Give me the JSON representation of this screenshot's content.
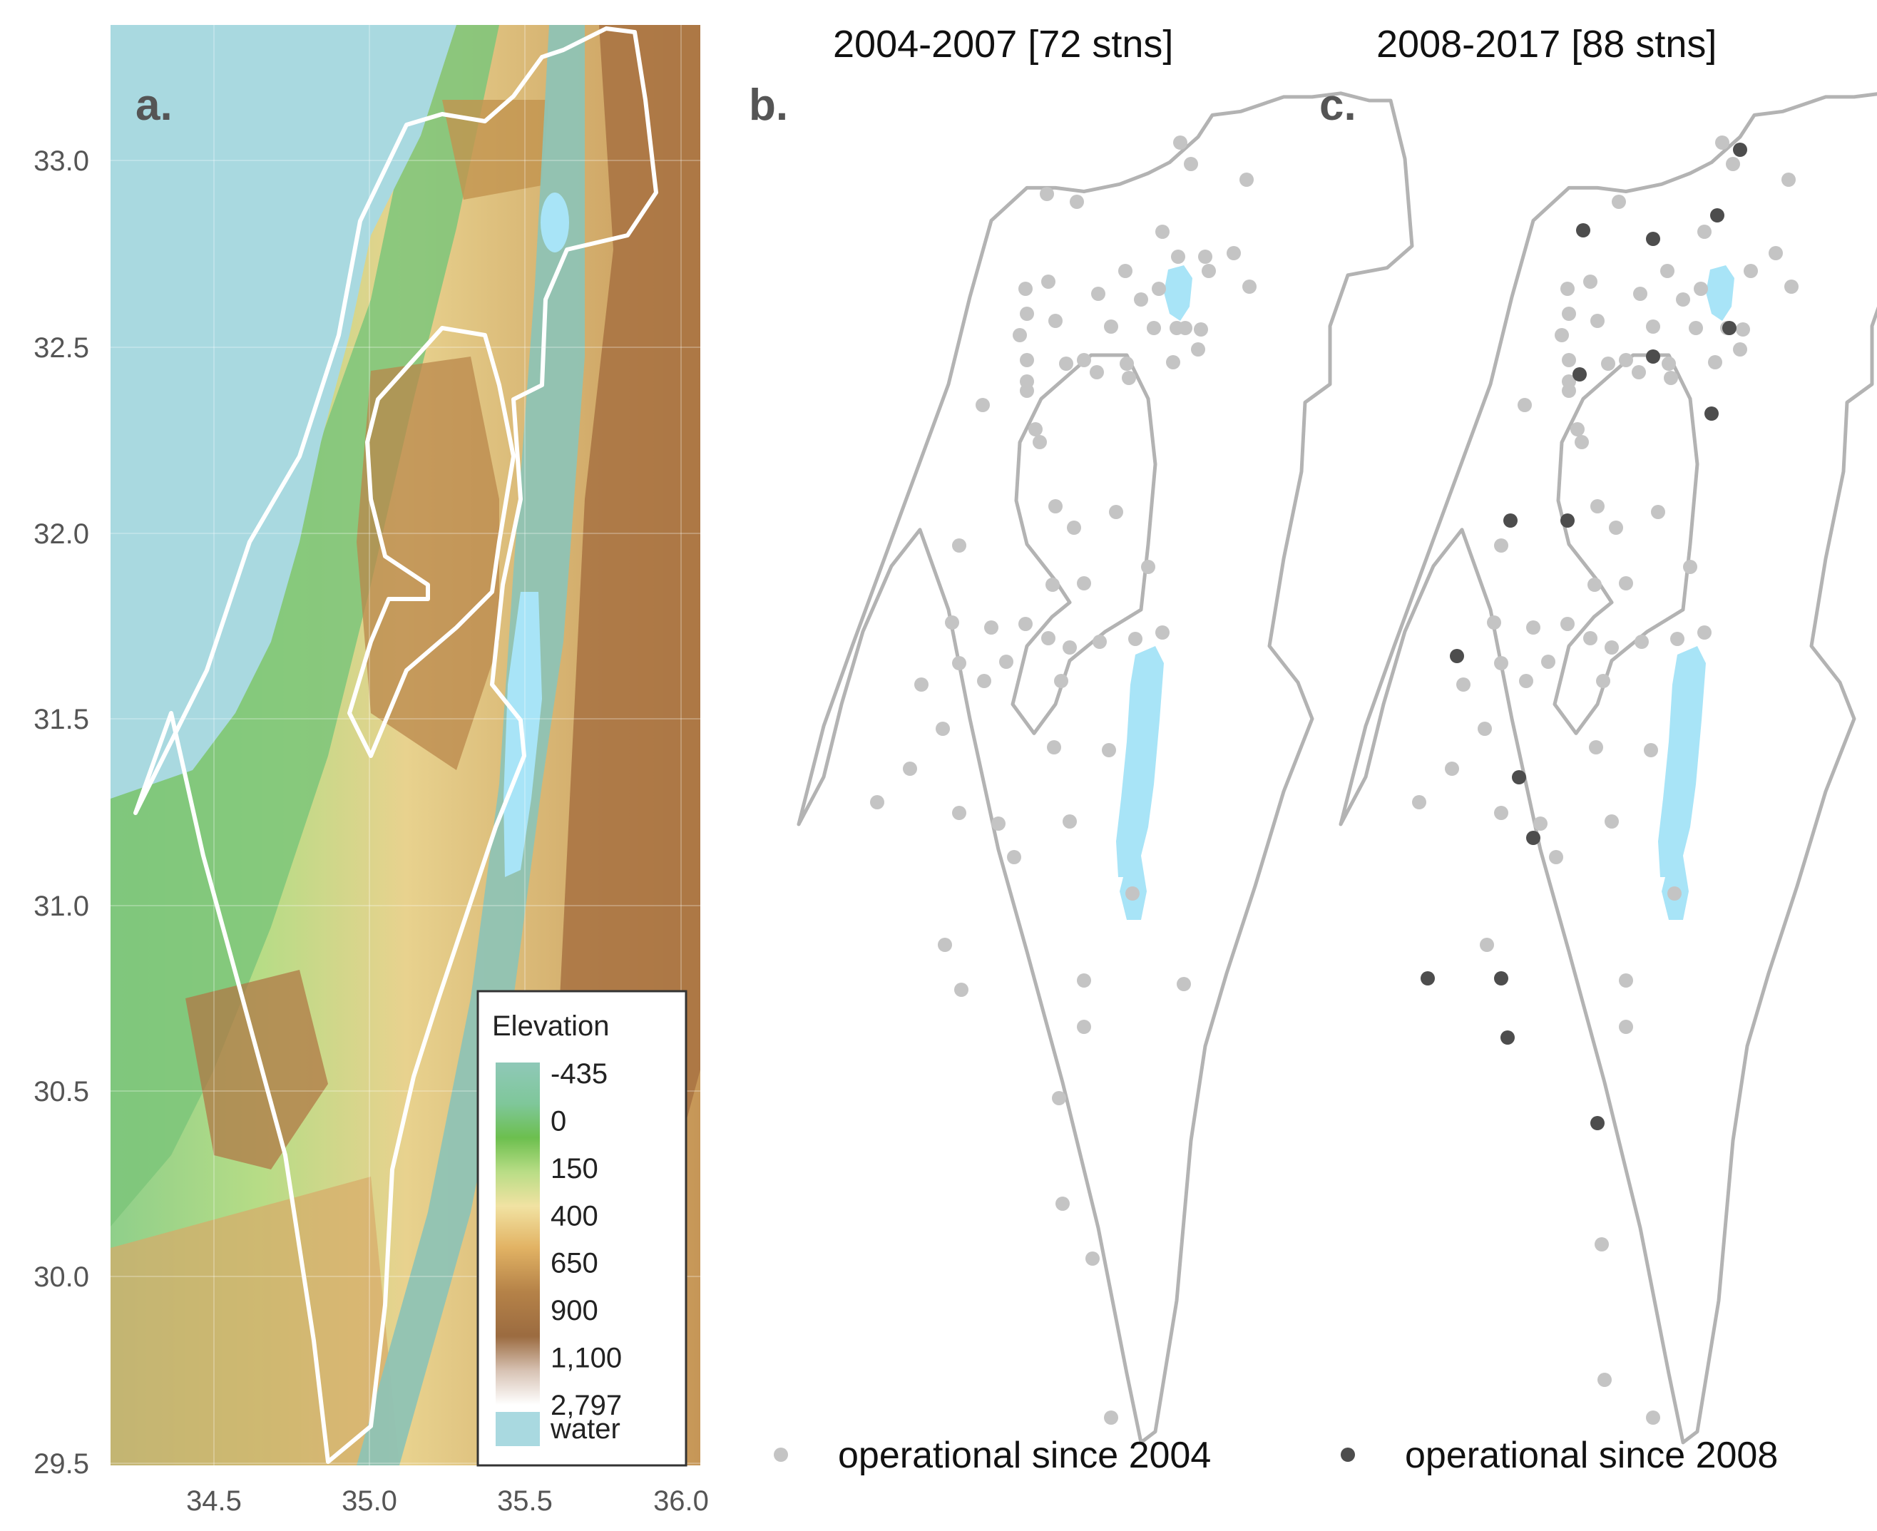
{
  "panels": [
    {
      "tag": "a.",
      "title": ""
    },
    {
      "tag": "b.",
      "title": "2004-2007 [72 stns]"
    },
    {
      "tag": "c.",
      "title": "2008-2017 [88 stns]"
    }
  ],
  "axes": {
    "x_ticks": [
      "34.5",
      "35.0",
      "35.5",
      "36.0"
    ],
    "y_ticks": [
      "33.0",
      "32.5",
      "32.0",
      "31.5",
      "31.0",
      "30.5",
      "30.0",
      "29.5"
    ]
  },
  "elevation_legend": {
    "title": "Elevation",
    "labels": [
      "-435",
      "0",
      "150",
      "400",
      "650",
      "900",
      "1,100",
      "2,797"
    ],
    "water_label": "water"
  },
  "station_legend": {
    "since_2004": "operational since 2004",
    "since_2008": "operational since 2008"
  },
  "colors": {
    "sea": "#a9d9e0",
    "lake": "#a8e4f7",
    "border_a": "#ffffff",
    "border_bc": "#b3b3b3",
    "station_2004": "#c4c4c4",
    "station_2008": "#4d4d4d"
  }
}
